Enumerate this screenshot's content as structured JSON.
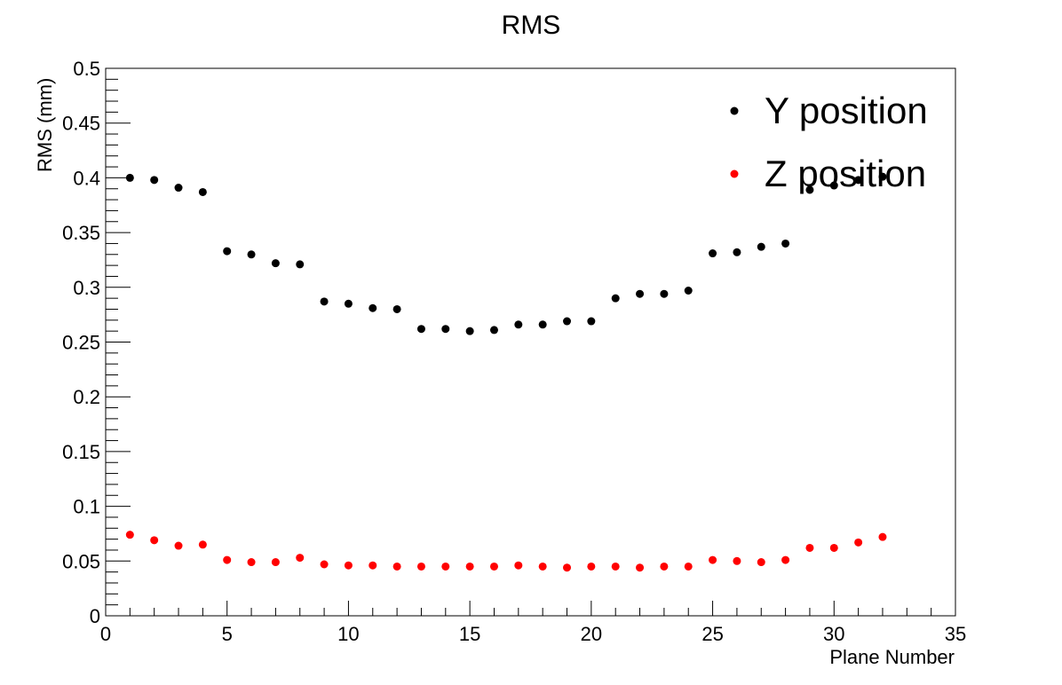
{
  "chart_data": {
    "type": "scatter",
    "title": "RMS",
    "xlabel": "Plane Number",
    "ylabel": "RMS (mm)",
    "xlim": [
      0,
      35
    ],
    "ylim": [
      0,
      0.5
    ],
    "xticks": [
      "0",
      "5",
      "10",
      "15",
      "20",
      "25",
      "30",
      "35"
    ],
    "yticks": [
      "0",
      "0.05",
      "0.1",
      "0.15",
      "0.2",
      "0.25",
      "0.3",
      "0.35",
      "0.4",
      "0.45",
      "0.5"
    ],
    "grid": false,
    "legend_position": "top-right",
    "series": [
      {
        "name": "Y position",
        "color": "#000000",
        "x": [
          1,
          2,
          3,
          4,
          5,
          6,
          7,
          8,
          9,
          10,
          11,
          12,
          13,
          14,
          15,
          16,
          17,
          18,
          19,
          20,
          21,
          22,
          23,
          24,
          25,
          26,
          27,
          28,
          29,
          30,
          31,
          32
        ],
        "y": [
          0.4,
          0.398,
          0.391,
          0.387,
          0.333,
          0.33,
          0.322,
          0.321,
          0.287,
          0.285,
          0.281,
          0.28,
          0.262,
          0.262,
          0.26,
          0.261,
          0.266,
          0.266,
          0.269,
          0.269,
          0.29,
          0.294,
          0.294,
          0.297,
          0.331,
          0.332,
          0.337,
          0.34,
          0.389,
          0.393,
          0.398,
          0.401
        ]
      },
      {
        "name": "Z position",
        "color": "#ff0000",
        "x": [
          1,
          2,
          3,
          4,
          5,
          6,
          7,
          8,
          9,
          10,
          11,
          12,
          13,
          14,
          15,
          16,
          17,
          18,
          19,
          20,
          21,
          22,
          23,
          24,
          25,
          26,
          27,
          28,
          29,
          30,
          31,
          32
        ],
        "y": [
          0.074,
          0.069,
          0.064,
          0.065,
          0.051,
          0.049,
          0.049,
          0.053,
          0.047,
          0.046,
          0.046,
          0.045,
          0.045,
          0.045,
          0.045,
          0.045,
          0.046,
          0.045,
          0.044,
          0.045,
          0.045,
          0.044,
          0.045,
          0.045,
          0.051,
          0.05,
          0.049,
          0.051,
          0.062,
          0.062,
          0.067,
          0.072
        ]
      }
    ]
  }
}
